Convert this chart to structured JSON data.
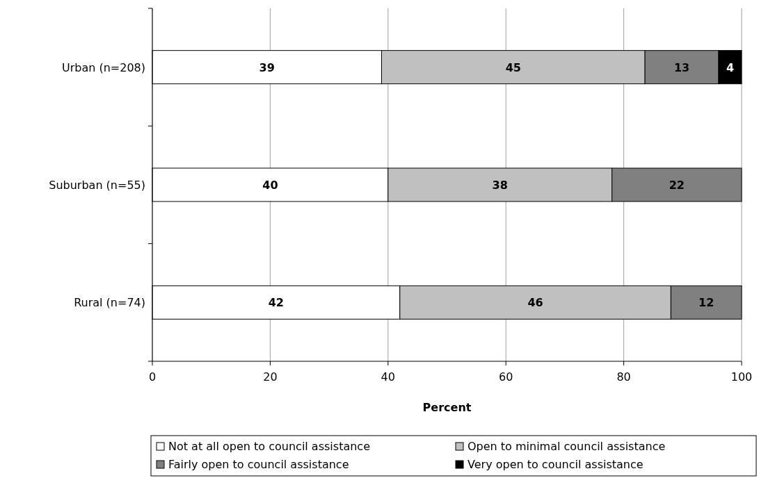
{
  "chart_data": {
    "type": "bar",
    "orientation": "horizontal",
    "stacked": true,
    "xlabel": "Percent",
    "categories": [
      "Urban (n=208)",
      "Suburban (n=55)",
      "Rural (n=74)"
    ],
    "series": [
      {
        "name": "Not at all open to council assistance",
        "color": "#ffffff",
        "values": [
          38.9,
          40,
          42
        ],
        "value_labels": [
          "39",
          "40",
          "42"
        ]
      },
      {
        "name": "Open to minimal council assistance",
        "color": "#c0c0c0",
        "values": [
          44.7,
          38,
          46
        ],
        "value_labels": [
          "45",
          "38",
          "46"
        ]
      },
      {
        "name": "Fairly open to council assistance",
        "color": "#808080",
        "values": [
          12.5,
          22,
          12
        ],
        "value_labels": [
          "13",
          "22",
          "12"
        ]
      },
      {
        "name": "Very open to council assistance",
        "color": "#000000",
        "values": [
          3.9,
          null,
          null
        ],
        "value_labels": [
          "4",
          null,
          null
        ]
      }
    ],
    "xlim": [
      0,
      100
    ],
    "xticks": [
      0,
      20,
      40,
      60,
      80,
      100
    ],
    "grid": "x",
    "legend": "bottom"
  }
}
